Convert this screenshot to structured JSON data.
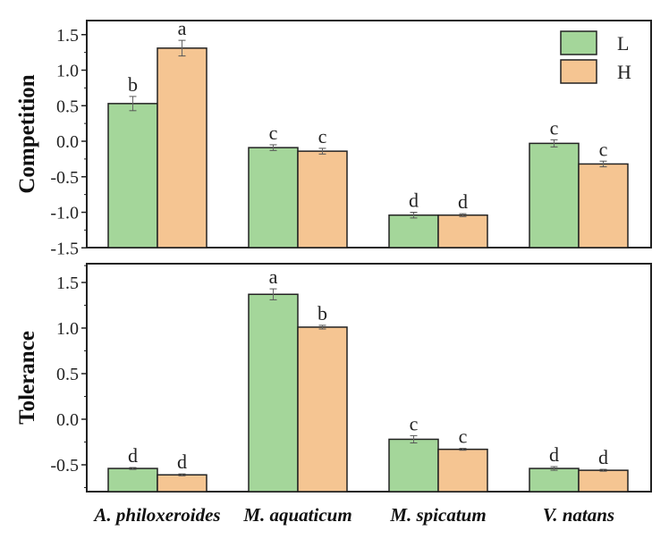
{
  "chart_data": [
    {
      "type": "bar",
      "ylabel": "Competition",
      "ylim": [
        -1.5,
        1.6
      ],
      "yticks": [
        "1.5",
        "1.0",
        "0.5",
        "0.0",
        "-0.5",
        "-1.0",
        "-1.5"
      ],
      "ytick_values": [
        1.5,
        1.0,
        0.5,
        0.0,
        -0.5,
        -1.0,
        -1.5
      ],
      "categories": [
        "A. philoxeroides",
        "M. aquaticum",
        "M. spicatum",
        "V. natans"
      ],
      "series": [
        {
          "name": "L",
          "values": [
            0.53,
            -0.09,
            -1.04,
            -0.03
          ],
          "errors": [
            0.1,
            0.04,
            0.04,
            0.05
          ],
          "letters": [
            "b",
            "c",
            "d",
            "c"
          ]
        },
        {
          "name": "H",
          "values": [
            1.31,
            -0.14,
            -1.04,
            -0.32
          ],
          "errors": [
            0.11,
            0.04,
            0.02,
            0.04
          ],
          "letters": [
            "a",
            "c",
            "d",
            "c"
          ]
        }
      ],
      "legend": {
        "position": "top-right",
        "entries": [
          "L",
          "H"
        ]
      }
    },
    {
      "type": "bar",
      "ylabel": "Tolerance",
      "ylim": [
        -0.8,
        1.7
      ],
      "yticks": [
        "1.5",
        "1.0",
        "0.5",
        "0.0",
        "-0.5"
      ],
      "ytick_values": [
        1.5,
        1.0,
        0.5,
        0.0,
        -0.5
      ],
      "categories": [
        "A. philoxeroides",
        "M. aquaticum",
        "M. spicatum",
        "V. natans"
      ],
      "series": [
        {
          "name": "L",
          "values": [
            -0.54,
            1.37,
            -0.22,
            -0.54
          ],
          "errors": [
            0.01,
            0.06,
            0.04,
            0.02
          ],
          "letters": [
            "d",
            "a",
            "c",
            "d"
          ]
        },
        {
          "name": "H",
          "values": [
            -0.61,
            1.01,
            -0.33,
            -0.56
          ],
          "errors": [
            0.01,
            0.02,
            0.01,
            0.01
          ],
          "letters": [
            "d",
            "b",
            "c",
            "d"
          ]
        }
      ]
    }
  ],
  "colors": {
    "L": "#a4d69a",
    "H": "#f5c592"
  }
}
